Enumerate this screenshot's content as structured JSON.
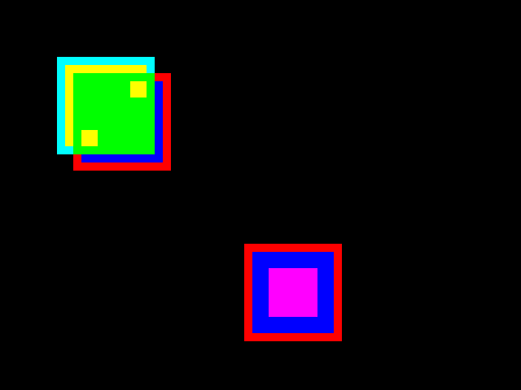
{
  "scene": {
    "background": "#000000",
    "sprites": [
      {
        "name": "sprite-red-blue-square-back",
        "layers": [
          "#ff0000",
          "#0000ff"
        ]
      },
      {
        "name": "sprite-cyan-yellow-green-square",
        "layers": [
          "#00ffff",
          "#ffff00",
          "#00ff00"
        ],
        "markers": [
          "#ffff00",
          "#ffff00"
        ]
      },
      {
        "name": "sprite-red-blue-magenta-square",
        "layers": [
          "#ff0000",
          "#0000ff",
          "#ff00ff"
        ]
      }
    ]
  }
}
